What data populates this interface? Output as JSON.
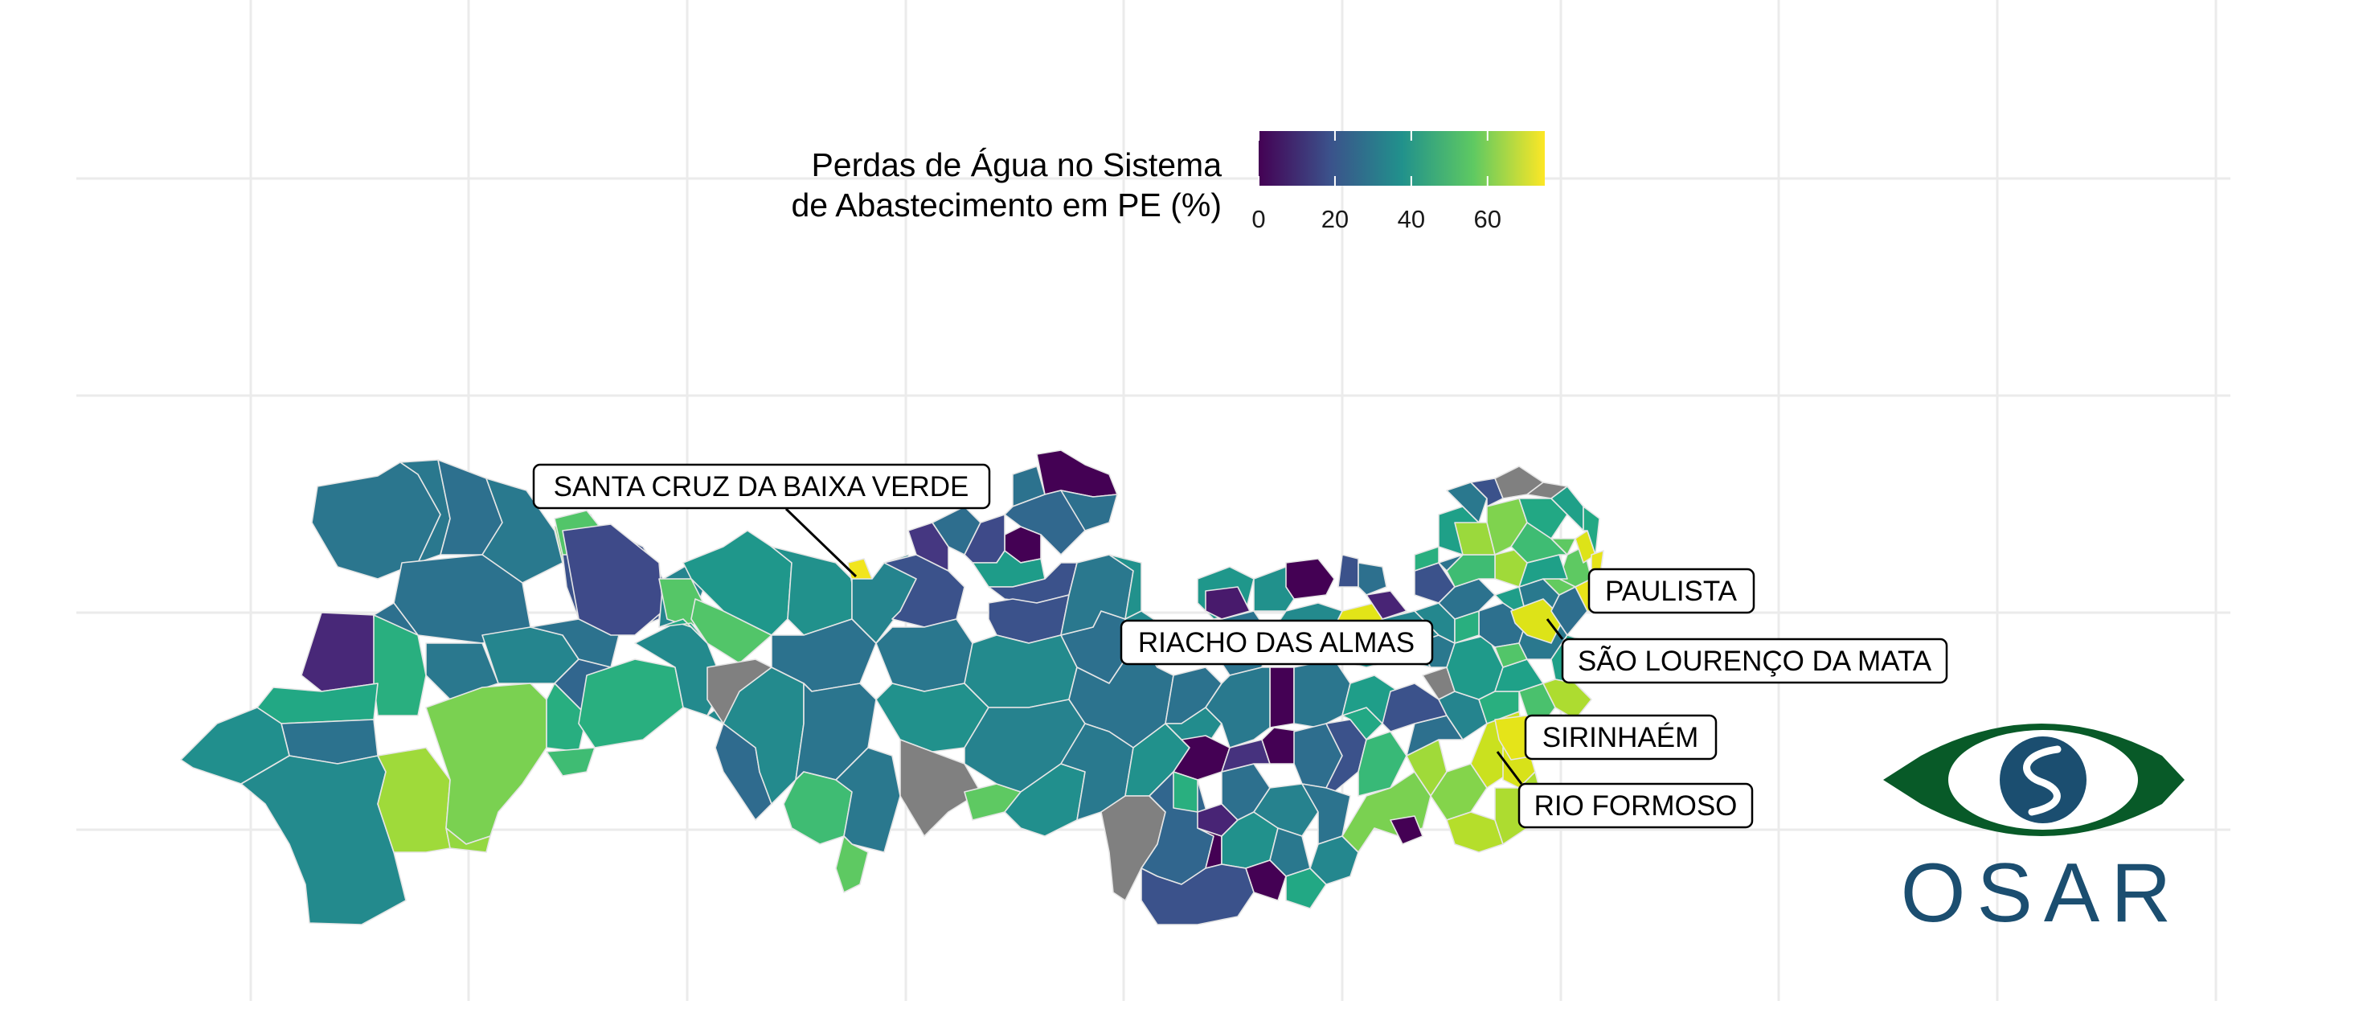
{
  "legend": {
    "title_line1": "Perdas de Água no Sistema",
    "title_line2": "de Abastecimento em PE (%)",
    "ticks": [
      {
        "value": 0,
        "label": "0"
      },
      {
        "value": 20,
        "label": "20"
      },
      {
        "value": 40,
        "label": "40"
      },
      {
        "value": 60,
        "label": "60"
      }
    ],
    "range": [
      0,
      75
    ],
    "colors": [
      "#440154",
      "#3b528b",
      "#21918c",
      "#5ec962",
      "#fde725"
    ]
  },
  "callouts": [
    {
      "id": "santa-cruz",
      "label": "SANTA CRUZ DA BAIXA VERDE"
    },
    {
      "id": "paulista",
      "label": "PAULISTA"
    },
    {
      "id": "riacho",
      "label": "RIACHO DAS ALMAS"
    },
    {
      "id": "sao-lourenco",
      "label": "SÃO LOURENÇO DA MATA"
    },
    {
      "id": "sirinhaem",
      "label": "SIRINHAÉM"
    },
    {
      "id": "rio-formoso",
      "label": "RIO FORMOSO"
    }
  ],
  "missing_color": "#808080",
  "logo": {
    "text": "OSAR",
    "primary_color": "#085a28",
    "secondary_color": "#1b4e70"
  }
}
